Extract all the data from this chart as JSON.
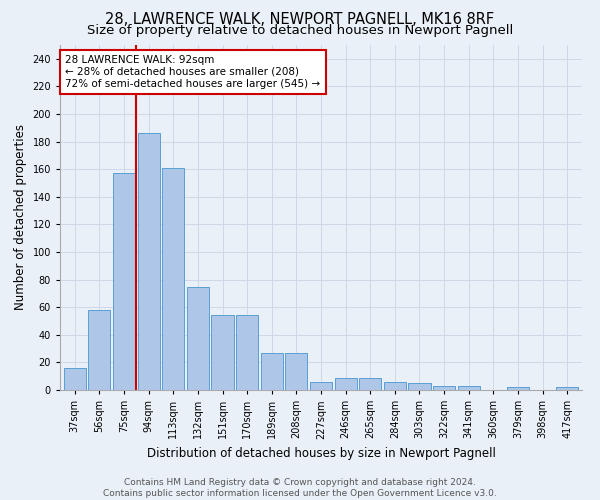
{
  "title": "28, LAWRENCE WALK, NEWPORT PAGNELL, MK16 8RF",
  "subtitle": "Size of property relative to detached houses in Newport Pagnell",
  "xlabel": "Distribution of detached houses by size in Newport Pagnell",
  "ylabel": "Number of detached properties",
  "bin_labels": [
    "37sqm",
    "56sqm",
    "75sqm",
    "94sqm",
    "113sqm",
    "132sqm",
    "151sqm",
    "170sqm",
    "189sqm",
    "208sqm",
    "227sqm",
    "246sqm",
    "265sqm",
    "284sqm",
    "303sqm",
    "322sqm",
    "341sqm",
    "360sqm",
    "379sqm",
    "398sqm",
    "417sqm"
  ],
  "bar_heights": [
    16,
    58,
    157,
    186,
    161,
    75,
    54,
    54,
    27,
    27,
    6,
    9,
    9,
    6,
    5,
    3,
    3,
    0,
    2,
    0,
    2
  ],
  "bar_color": "#aec6e8",
  "bar_edge_color": "#5a9fd4",
  "red_line_index": 3,
  "annotation_line1": "28 LAWRENCE WALK: 92sqm",
  "annotation_line2": "← 28% of detached houses are smaller (208)",
  "annotation_line3": "72% of semi-detached houses are larger (545) →",
  "annotation_box_color": "#ffffff",
  "annotation_box_edge": "#cc0000",
  "red_line_color": "#cc0000",
  "grid_color": "#d0d8e8",
  "background_color": "#eaf0f8",
  "ylim": [
    0,
    250
  ],
  "yticks": [
    0,
    20,
    40,
    60,
    80,
    100,
    120,
    140,
    160,
    180,
    200,
    220,
    240
  ],
  "title_fontsize": 10.5,
  "subtitle_fontsize": 9.5,
  "xlabel_fontsize": 8.5,
  "ylabel_fontsize": 8.5,
  "tick_fontsize": 7,
  "annotation_fontsize": 7.5,
  "footer_fontsize": 6.5
}
